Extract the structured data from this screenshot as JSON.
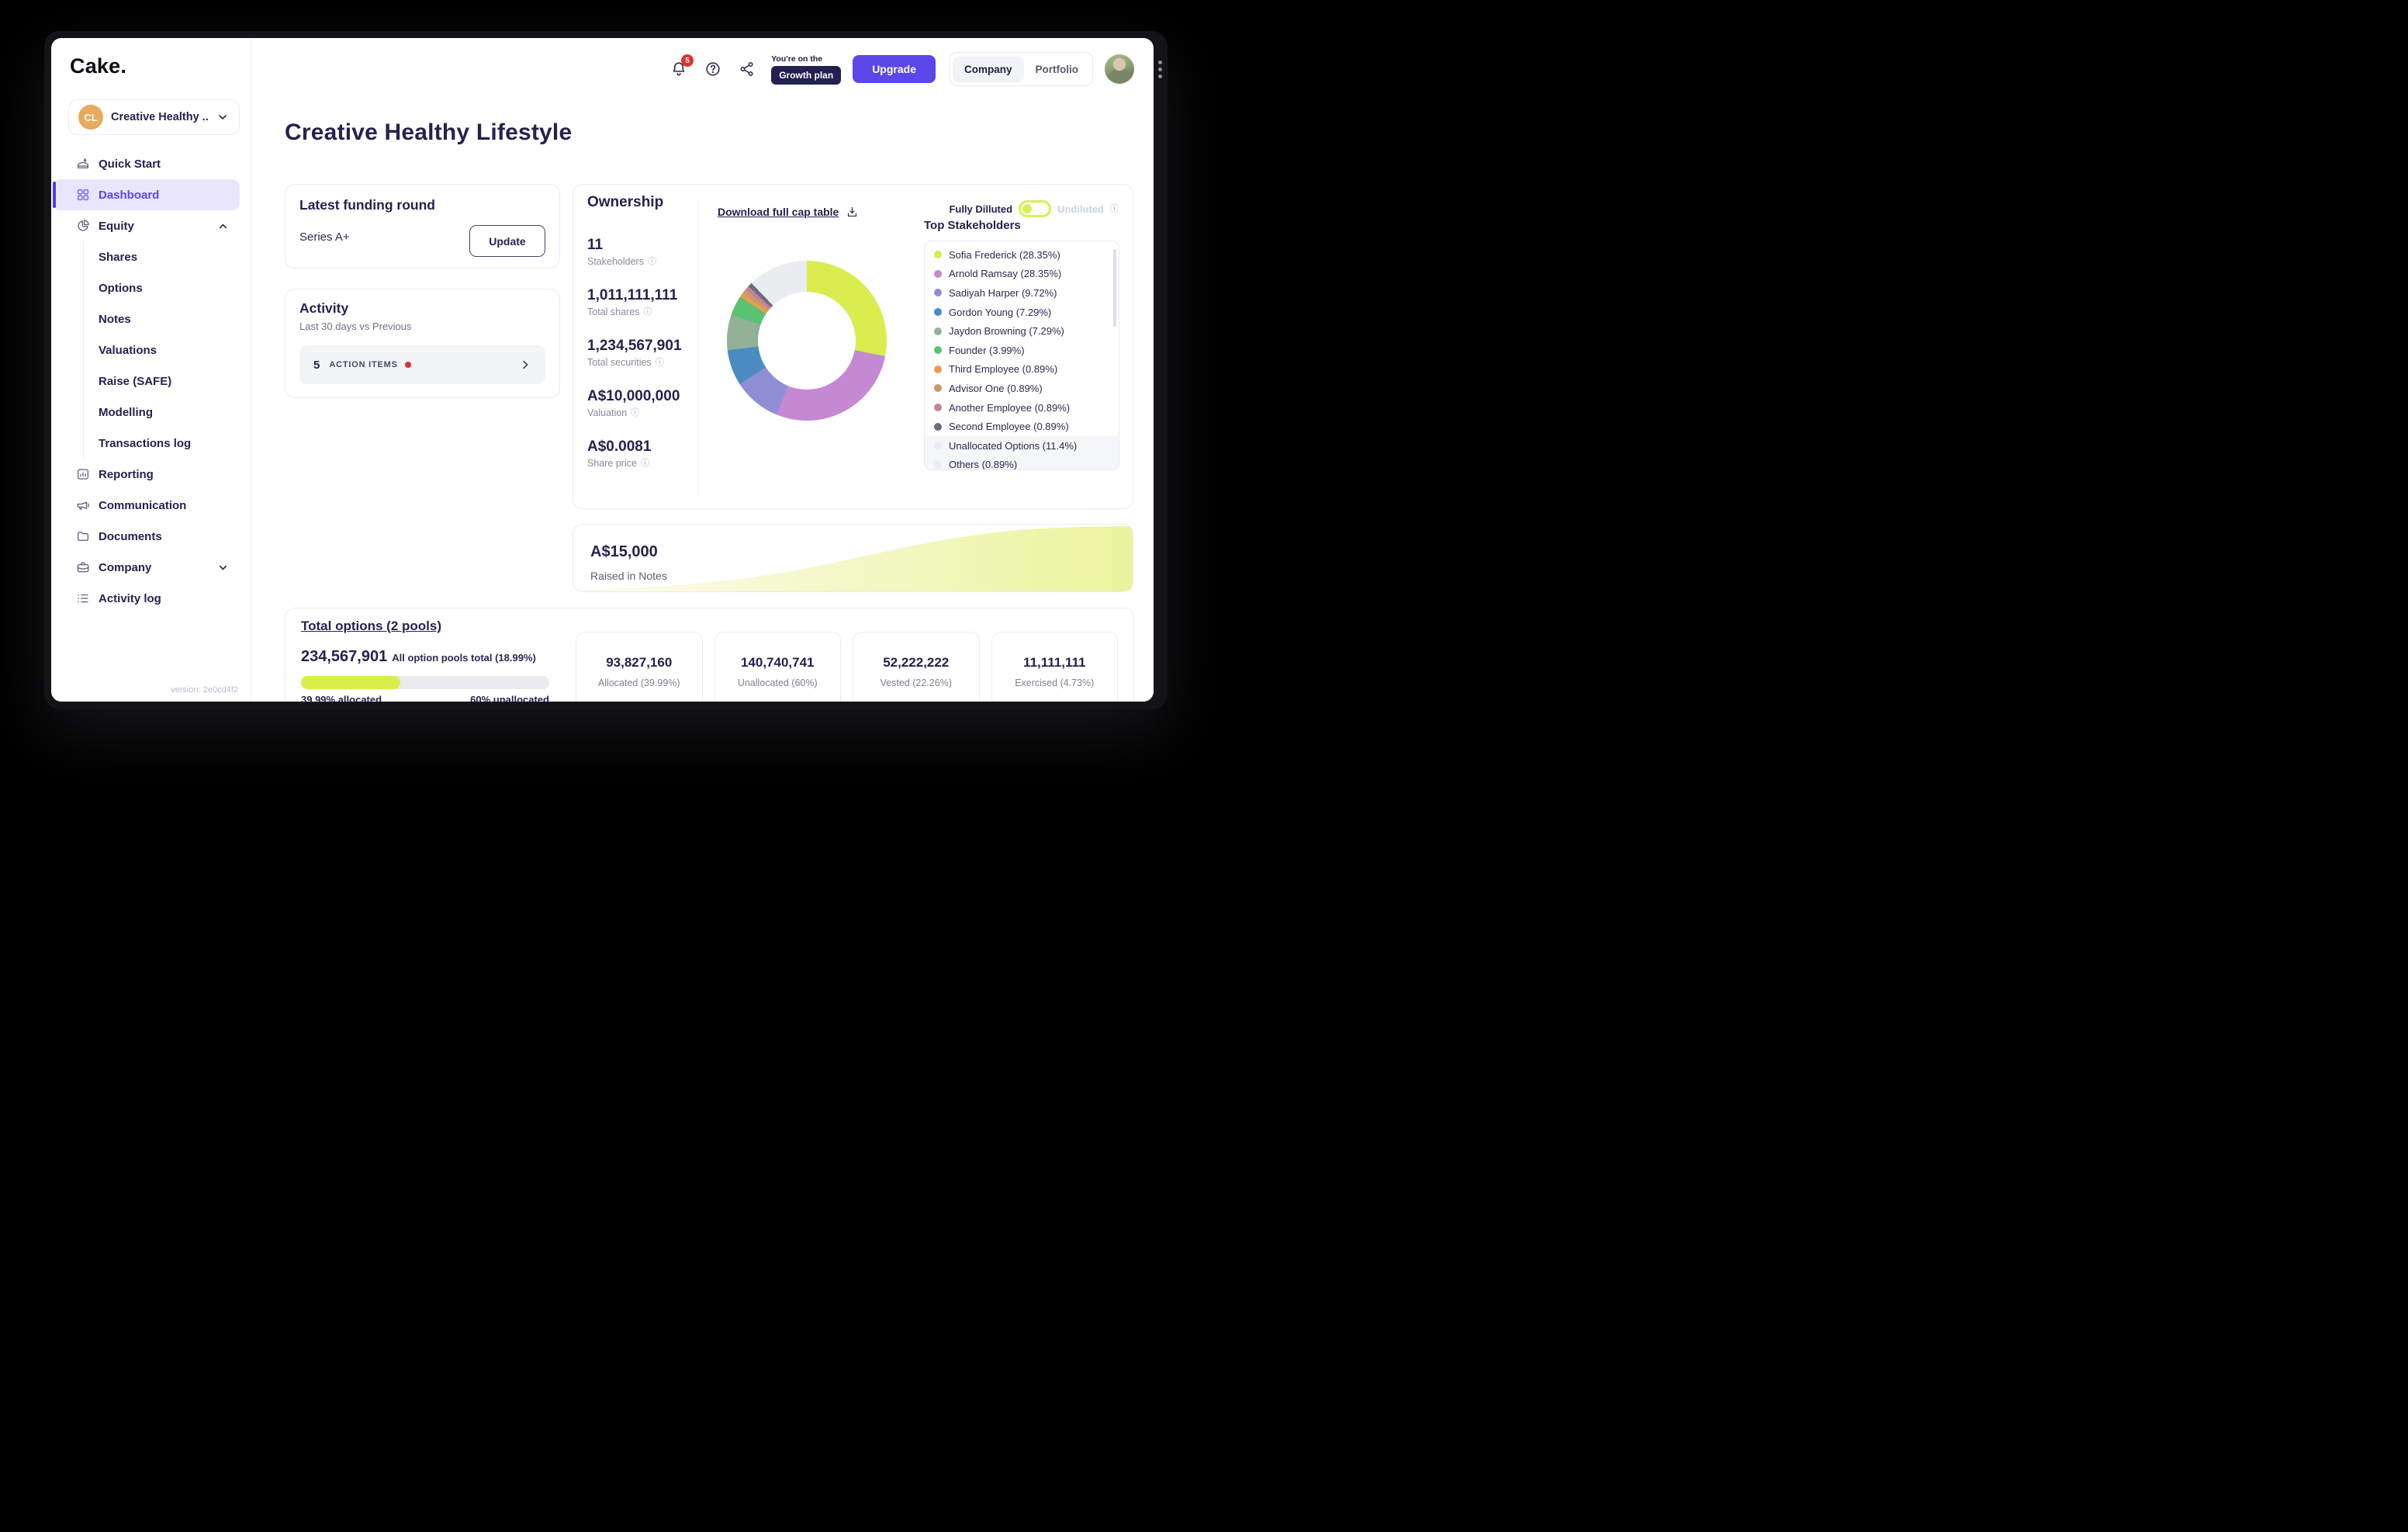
{
  "window": {
    "label": "Cake app window"
  },
  "sidebar": {
    "logo": "Cake.",
    "company_selector": {
      "initials": "CL",
      "label": "Creative Healthy ...",
      "avatar_color": "#e9a95e"
    },
    "items": [
      {
        "label": "Quick Start"
      },
      {
        "label": "Dashboard",
        "active": true
      },
      {
        "label": "Equity",
        "expanded": true
      }
    ],
    "equity_children": [
      "Shares",
      "Options",
      "Notes",
      "Valuations",
      "Raise (SAFE)",
      "Modelling",
      "Transactions log"
    ],
    "lower": [
      "Reporting",
      "Communication",
      "Documents",
      "Company",
      "Activity log"
    ],
    "version": "version: 2e0cd4f2"
  },
  "topbar": {
    "notification_count": "5",
    "plan_prefix": "You're on the",
    "plan_name": "Growth plan",
    "upgrade_label": "Upgrade",
    "segments": [
      "Company",
      "Portfolio"
    ]
  },
  "page": {
    "title": "Creative Healthy Lifestyle"
  },
  "funding": {
    "title": "Latest funding round",
    "round": "Series A+",
    "update_label": "Update"
  },
  "activity": {
    "title": "Activity",
    "subtitle": "Last 30 days vs Previous",
    "count": "5",
    "items_label": "ACTION ITEMS"
  },
  "ownership": {
    "title": "Ownership",
    "download_label": "Download full cap table",
    "toggle": {
      "on_label": "Fully Dilluted",
      "off_label": "Undiluted"
    },
    "stats": [
      {
        "value": "11",
        "label": "Stakeholders"
      },
      {
        "value": "1,011,111,111",
        "label": "Total shares"
      },
      {
        "value": "1,234,567,901",
        "label": "Total securities"
      },
      {
        "value": "A$10,000,000",
        "label": "Valuation"
      },
      {
        "value": "A$0.0081",
        "label": "Share price"
      }
    ],
    "top_stakeholders_title": "Top Stakeholders",
    "chart_data": {
      "type": "pie",
      "title": "Top Stakeholders",
      "slices": [
        {
          "label": "Sofia Frederick (28.35%)",
          "pct": 28.35,
          "color": "#d9ed4f"
        },
        {
          "label": "Arnold Ramsay (28.35%)",
          "pct": 28.35,
          "color": "#c588d2"
        },
        {
          "label": "Sadiyah Harper (9.72%)",
          "pct": 9.72,
          "color": "#8f8fd6"
        },
        {
          "label": "Gordon Young (7.29%)",
          "pct": 7.29,
          "color": "#4b8bc2"
        },
        {
          "label": "Jaydon Browning (7.29%)",
          "pct": 7.29,
          "color": "#92b297"
        },
        {
          "label": "Founder (3.99%)",
          "pct": 3.99,
          "color": "#57c373"
        },
        {
          "label": "Third Employee (0.89%)",
          "pct": 0.89,
          "color": "#eb9d4f"
        },
        {
          "label": "Advisor One (0.89%)",
          "pct": 0.89,
          "color": "#c89a68"
        },
        {
          "label": "Another Employee (0.89%)",
          "pct": 0.89,
          "color": "#c3829b"
        },
        {
          "label": "Second Employee (0.89%)",
          "pct": 0.89,
          "color": "#6b6b80"
        },
        {
          "label": "Unallocated Options (11.4%)",
          "pct": 11.4,
          "color": "#e9edf0",
          "muted": true
        },
        {
          "label": "Others (0.89%)",
          "pct": 0.89,
          "color": "#e9edf0",
          "muted": true
        }
      ]
    }
  },
  "notes": {
    "value": "A$15,000",
    "label": "Raised in Notes",
    "area_color": "#e4f180"
  },
  "options": {
    "title": "Total options (2 pools)",
    "total": "234,567,901",
    "total_label": "All option pools total (18.99%)",
    "progress_pct": 39.99,
    "allocated_label": "39.99% allocated",
    "unallocated_label": "60% unallocated",
    "cards": [
      {
        "value": "93,827,160",
        "label": "Allocated (39.99%)"
      },
      {
        "value": "140,740,741",
        "label": "Unallocated (60%)"
      },
      {
        "value": "52,222,222",
        "label": "Vested (22.26%)"
      },
      {
        "value": "11,111,111",
        "label": "Exercised (4.73%)"
      }
    ]
  },
  "colors": {
    "accent_purple": "#5b46ea",
    "lime": "#d9ee48",
    "navy": "#26224f",
    "alert_red": "#e0312c"
  }
}
